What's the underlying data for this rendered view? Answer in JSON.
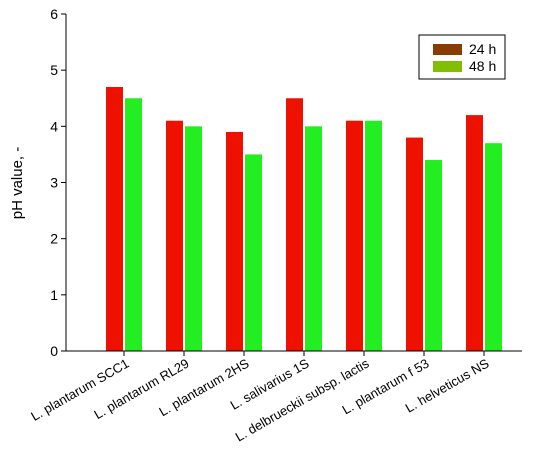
{
  "chart_data": {
    "type": "bar",
    "title": "",
    "xlabel": "",
    "ylabel": "pH value, -",
    "ylim": [
      0,
      6
    ],
    "yticks": [
      0,
      1,
      2,
      3,
      4,
      5,
      6
    ],
    "grid": false,
    "legend_position": "top-right",
    "categories": [
      "L. plantarum SCC1",
      "L. plantarum RL29",
      "L. plantarum 2HS",
      "L. salivarius 1S",
      "L. delbrueckii subsp. lactis",
      "L. plantarum f 53",
      "L. helveticus NS"
    ],
    "series": [
      {
        "name": "24 h",
        "color": "#ee1100",
        "legend_color": "#8b3a00",
        "values": [
          4.7,
          4.1,
          3.9,
          4.5,
          4.1,
          3.8,
          4.2
        ]
      },
      {
        "name": "48 h",
        "color": "#22ee22",
        "legend_color": "#7fbf00",
        "values": [
          4.5,
          4.0,
          3.5,
          4.0,
          4.1,
          3.4,
          3.7
        ]
      }
    ]
  }
}
